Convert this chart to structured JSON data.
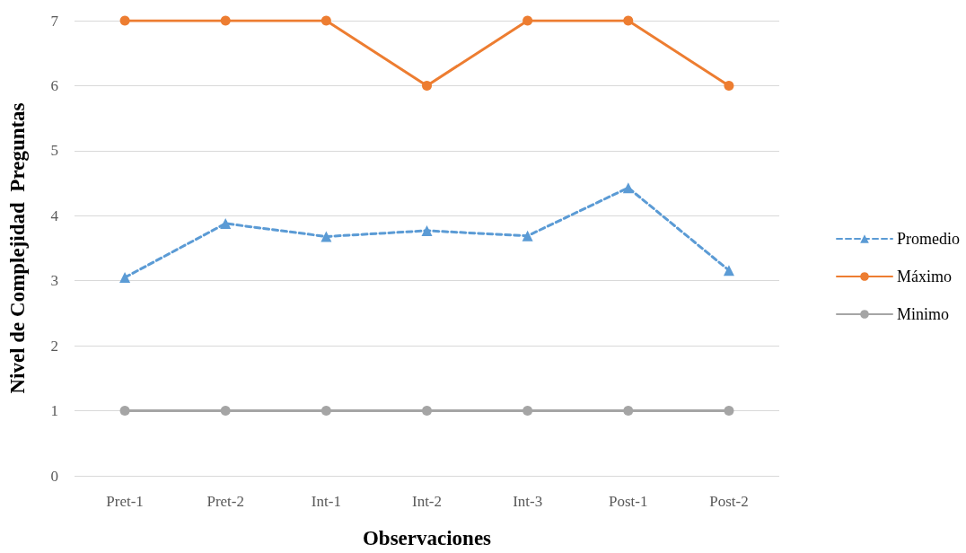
{
  "chart_data": {
    "type": "line",
    "xlabel": "Observaciones",
    "ylabel": "Nivel de Complejidad  Preguntas",
    "categories": [
      "Pret-1",
      "Pret-2",
      "Int-1",
      "Int-2",
      "Int-3",
      "Post-1",
      "Post-2"
    ],
    "series": [
      {
        "name": "Promedio",
        "color": "#5b9bd5",
        "marker": "triangle",
        "line_style": "dashed",
        "values": [
          3.05,
          3.88,
          3.68,
          3.77,
          3.69,
          4.43,
          3.16
        ]
      },
      {
        "name": "Máximo",
        "color": "#ed7d31",
        "marker": "circle",
        "line_style": "solid",
        "values": [
          7,
          7,
          7,
          6,
          7,
          7,
          6
        ]
      },
      {
        "name": "Minimo",
        "color": "#a5a5a5",
        "marker": "circle",
        "line_style": "solid",
        "values": [
          1,
          1,
          1,
          1,
          1,
          1,
          1
        ]
      }
    ],
    "ylim": [
      0,
      7
    ],
    "yticks": [
      0,
      1,
      2,
      3,
      4,
      5,
      6,
      7
    ],
    "grid": "y",
    "legend": "right"
  }
}
